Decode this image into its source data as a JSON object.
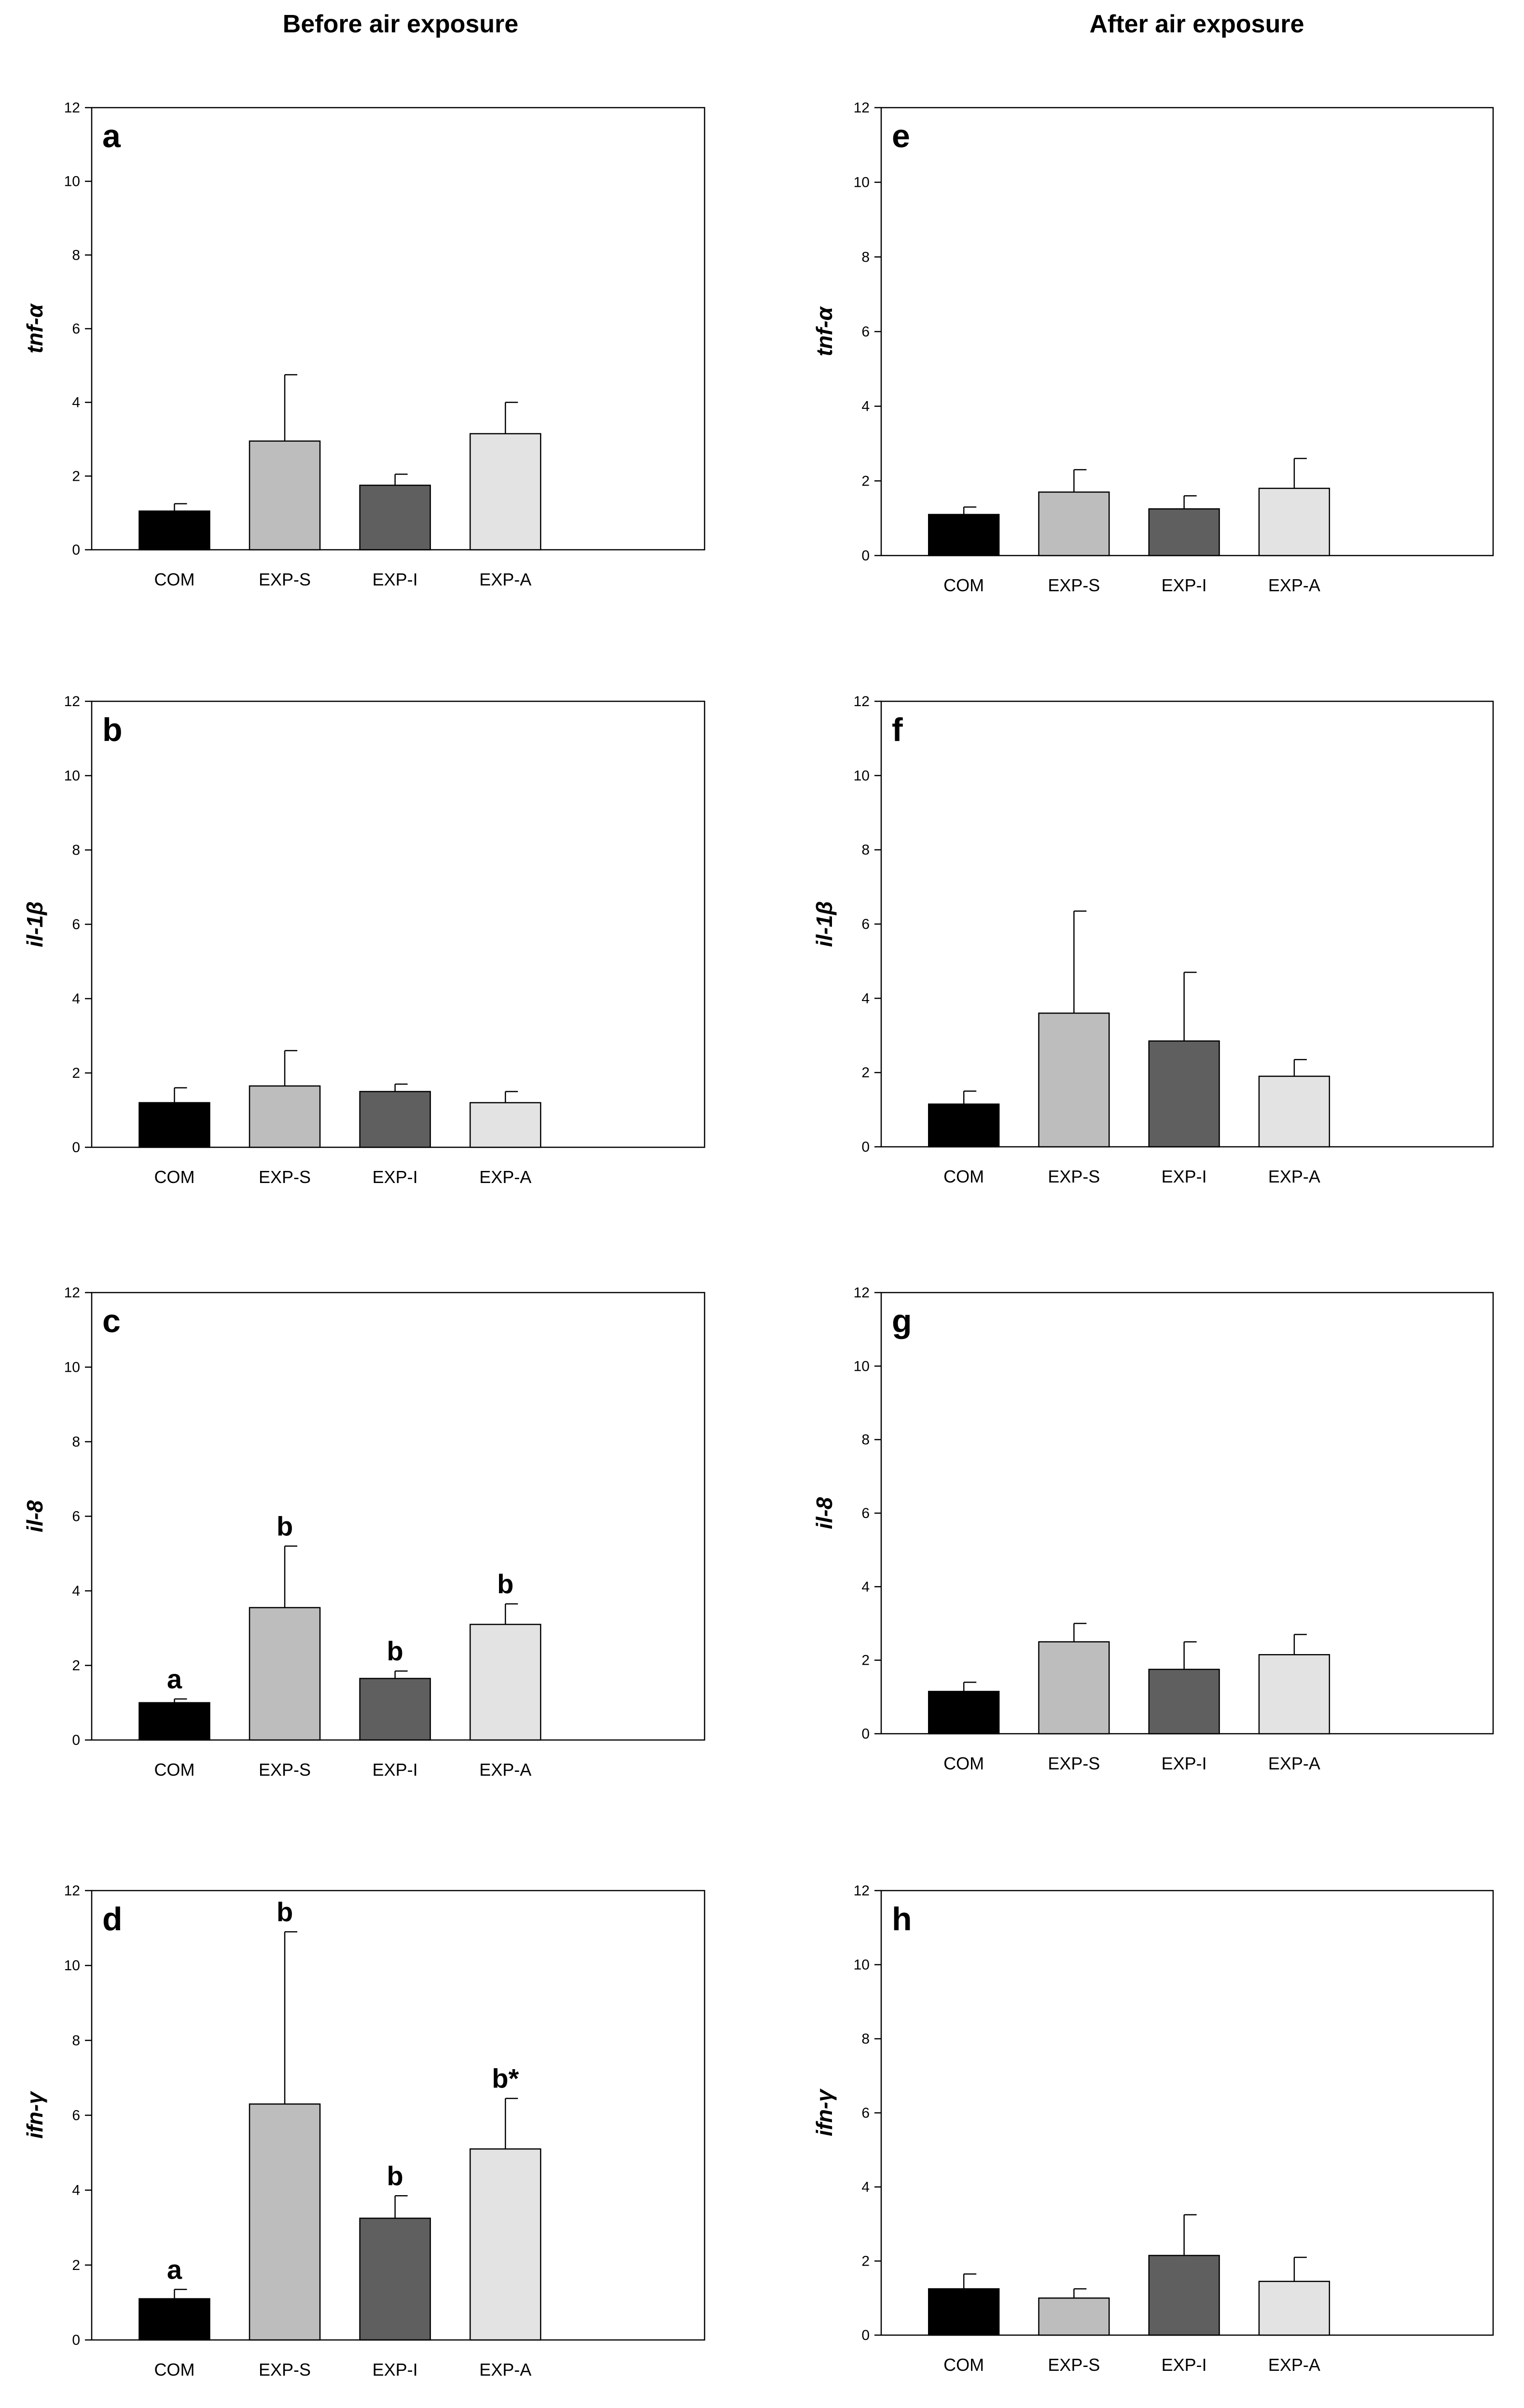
{
  "column_titles": {
    "left": "Before air exposure",
    "right": "After air exposure"
  },
  "colors": {
    "COM": "#000000",
    "EXP-S": "#bdbdbd",
    "EXP-I": "#5f5f5f",
    "EXP-A": "#e3e3e3"
  },
  "chart_data": [
    {
      "panel": "a",
      "type": "bar",
      "title": "",
      "ylabel": "tnf-α",
      "xlabel": "",
      "ylim": [
        0,
        12
      ],
      "yticks": [
        0,
        2,
        4,
        6,
        8,
        10,
        12
      ],
      "categories": [
        "COM",
        "EXP-S",
        "EXP-I",
        "EXP-A"
      ],
      "values": [
        1.05,
        2.95,
        1.75,
        3.15
      ],
      "errors": [
        0.2,
        1.8,
        0.3,
        0.85
      ],
      "annotations": [
        "",
        "",
        "",
        ""
      ]
    },
    {
      "panel": "b",
      "type": "bar",
      "title": "",
      "ylabel": "il-1β",
      "xlabel": "",
      "ylim": [
        0,
        12
      ],
      "yticks": [
        0,
        2,
        4,
        6,
        8,
        10,
        12
      ],
      "categories": [
        "COM",
        "EXP-S",
        "EXP-I",
        "EXP-A"
      ],
      "values": [
        1.2,
        1.65,
        1.5,
        1.2
      ],
      "errors": [
        0.4,
        0.95,
        0.2,
        0.3
      ],
      "annotations": [
        "",
        "",
        "",
        ""
      ]
    },
    {
      "panel": "c",
      "type": "bar",
      "title": "",
      "ylabel": "il-8",
      "xlabel": "",
      "ylim": [
        0,
        12
      ],
      "yticks": [
        0,
        2,
        4,
        6,
        8,
        10,
        12
      ],
      "categories": [
        "COM",
        "EXP-S",
        "EXP-I",
        "EXP-A"
      ],
      "values": [
        1.0,
        3.55,
        1.65,
        3.1
      ],
      "errors": [
        0.1,
        1.65,
        0.2,
        0.55
      ],
      "annotations": [
        "a",
        "b",
        "b",
        "b"
      ]
    },
    {
      "panel": "d",
      "type": "bar",
      "title": "",
      "ylabel": "ifn-γ",
      "xlabel": "",
      "ylim": [
        0,
        12
      ],
      "yticks": [
        0,
        2,
        4,
        6,
        8,
        10,
        12
      ],
      "categories": [
        "COM",
        "EXP-S",
        "EXP-I",
        "EXP-A"
      ],
      "values": [
        1.1,
        6.3,
        3.25,
        5.1
      ],
      "errors": [
        0.25,
        4.6,
        0.6,
        1.35
      ],
      "annotations": [
        "a",
        "b",
        "b",
        "b*"
      ]
    },
    {
      "panel": "e",
      "type": "bar",
      "title": "",
      "ylabel": "tnf-α",
      "xlabel": "",
      "ylim": [
        0,
        12
      ],
      "yticks": [
        0,
        2,
        4,
        6,
        8,
        10,
        12
      ],
      "categories": [
        "COM",
        "EXP-S",
        "EXP-I",
        "EXP-A"
      ],
      "values": [
        1.1,
        1.7,
        1.25,
        1.8
      ],
      "errors": [
        0.2,
        0.6,
        0.35,
        0.8
      ],
      "annotations": [
        "",
        "",
        "",
        ""
      ]
    },
    {
      "panel": "f",
      "type": "bar",
      "title": "",
      "ylabel": "il-1β",
      "xlabel": "",
      "ylim": [
        0,
        12
      ],
      "yticks": [
        0,
        2,
        4,
        6,
        8,
        10,
        12
      ],
      "categories": [
        "COM",
        "EXP-S",
        "EXP-I",
        "EXP-A"
      ],
      "values": [
        1.15,
        3.6,
        2.85,
        1.9
      ],
      "errors": [
        0.35,
        2.75,
        1.85,
        0.45
      ],
      "annotations": [
        "",
        "",
        "",
        ""
      ]
    },
    {
      "panel": "g",
      "type": "bar",
      "title": "",
      "ylabel": "il-8",
      "xlabel": "",
      "ylim": [
        0,
        12
      ],
      "yticks": [
        0,
        2,
        4,
        6,
        8,
        10,
        12
      ],
      "categories": [
        "COM",
        "EXP-S",
        "EXP-I",
        "EXP-A"
      ],
      "values": [
        1.15,
        2.5,
        1.75,
        2.15
      ],
      "errors": [
        0.25,
        0.5,
        0.75,
        0.55
      ],
      "annotations": [
        "",
        "",
        "",
        ""
      ]
    },
    {
      "panel": "h",
      "type": "bar",
      "title": "",
      "ylabel": "ifn-γ",
      "xlabel": "",
      "ylim": [
        0,
        12
      ],
      "yticks": [
        0,
        2,
        4,
        6,
        8,
        10,
        12
      ],
      "categories": [
        "COM",
        "EXP-S",
        "EXP-I",
        "EXP-A"
      ],
      "values": [
        1.25,
        1.0,
        2.15,
        1.45
      ],
      "errors": [
        0.4,
        0.25,
        1.1,
        0.65
      ],
      "annotations": [
        "",
        "",
        "",
        ""
      ]
    }
  ]
}
